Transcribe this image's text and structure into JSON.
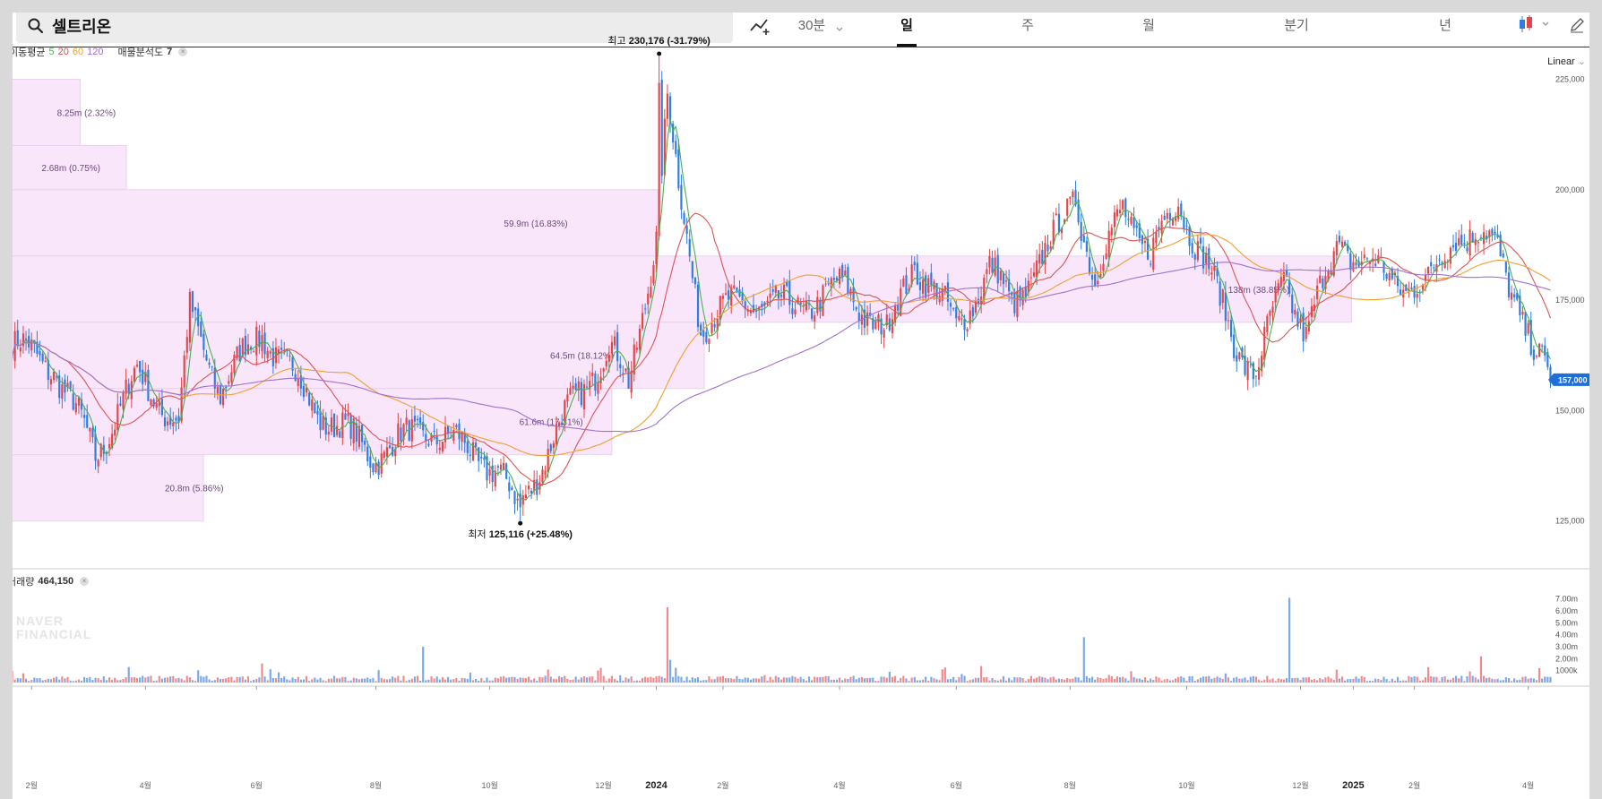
{
  "search": {
    "query": "셀트리온"
  },
  "toolbar": {
    "interval": "30분",
    "periods": [
      "일",
      "주",
      "월",
      "분기",
      "년"
    ],
    "active_period": "일",
    "scale_mode": "Linear"
  },
  "indicators": {
    "ma_label": "이동평균",
    "ma_periods": [
      "5",
      "20",
      "60",
      "120"
    ],
    "vp_label": "매물분석도",
    "vp_value": "7"
  },
  "volume_panel": {
    "label": "거래량",
    "value": "464,150"
  },
  "watermark": {
    "line1": "NAVER",
    "line2": "FINANCIAL"
  },
  "colors": {
    "up": "#e0464a",
    "down": "#2f7de1",
    "ma5": "#4caf50",
    "ma20": "#e05353",
    "ma60": "#f0a030",
    "ma120": "#a070d0",
    "vp_fill": "#f9e6fb",
    "price_tag": "#1e6fd9"
  },
  "chart_data": {
    "type": "candlestick",
    "title": "",
    "price_axis": {
      "ylim": [
        115000,
        232000
      ],
      "ticks": [
        125000,
        150000,
        175000,
        200000,
        225000
      ],
      "tick_labels": [
        "125,000",
        "150,000",
        "175,000",
        "200,000",
        "225,000"
      ]
    },
    "time_axis": {
      "labels": [
        "2월",
        "4월",
        "6월",
        "8월",
        "10월",
        "12월",
        "2024",
        "2월",
        "4월",
        "6월",
        "8월",
        "10월",
        "12월",
        "2025",
        "2월",
        "4월"
      ],
      "label_index": [
        7,
        48,
        88,
        131,
        172,
        213,
        232,
        256,
        298,
        340,
        381,
        423,
        464,
        483,
        505,
        546
      ]
    },
    "n_bars": 555,
    "close_anchors": [
      [
        0,
        165000
      ],
      [
        15,
        160000
      ],
      [
        30,
        140000
      ],
      [
        45,
        158000
      ],
      [
        60,
        147000
      ],
      [
        64,
        172000
      ],
      [
        75,
        155000
      ],
      [
        90,
        168000
      ],
      [
        110,
        150000
      ],
      [
        130,
        140000
      ],
      [
        150,
        146000
      ],
      [
        175,
        137000
      ],
      [
        182,
        127000
      ],
      [
        195,
        144000
      ],
      [
        215,
        165000
      ],
      [
        222,
        155000
      ],
      [
        232,
        190000
      ],
      [
        236,
        220000
      ],
      [
        240,
        200000
      ],
      [
        248,
        170000
      ],
      [
        265,
        175000
      ],
      [
        280,
        173000
      ],
      [
        300,
        178000
      ],
      [
        315,
        167000
      ],
      [
        325,
        184000
      ],
      [
        340,
        169000
      ],
      [
        352,
        182000
      ],
      [
        360,
        174000
      ],
      [
        375,
        188000
      ],
      [
        383,
        200000
      ],
      [
        390,
        178000
      ],
      [
        400,
        197000
      ],
      [
        410,
        185000
      ],
      [
        420,
        198000
      ],
      [
        430,
        183000
      ],
      [
        440,
        166000
      ],
      [
        448,
        158000
      ],
      [
        458,
        180000
      ],
      [
        466,
        168000
      ],
      [
        478,
        188000
      ],
      [
        495,
        180000
      ],
      [
        510,
        178000
      ],
      [
        520,
        191000
      ],
      [
        535,
        187000
      ],
      [
        542,
        175000
      ],
      [
        548,
        162000
      ],
      [
        552,
        159000
      ],
      [
        554,
        157000
      ]
    ],
    "high": {
      "value": 230176,
      "label": "최고",
      "value_label": "230,176",
      "pct_label": "(-31.79%)"
    },
    "low": {
      "value": 125116,
      "label": "최저",
      "value_label": "125,116",
      "pct_label": "(+25.48%)"
    },
    "current_price": {
      "value": 157000,
      "label": "157,000"
    },
    "volume_profile": [
      {
        "from": 210000,
        "to": 225000,
        "label": "8.25m (2.32%)"
      },
      {
        "from": 200000,
        "to": 210000,
        "label": "2.68m (0.75%)"
      },
      {
        "from": 185000,
        "to": 200000,
        "label": "59.9m (16.83%)"
      },
      {
        "from": 170000,
        "to": 185000,
        "label": "138m (38.85%)"
      },
      {
        "from": 155000,
        "to": 170000,
        "label": "64.5m (18.12%)"
      },
      {
        "from": 140000,
        "to": 155000,
        "label": "61.6m (17.31%)"
      },
      {
        "from": 125000,
        "to": 140000,
        "label": "20.8m (5.86%)"
      }
    ],
    "volume_axis": {
      "ylim": [
        0,
        7500000
      ],
      "ticks": [
        1000000,
        2000000,
        3000000,
        4000000,
        5000000,
        6000000,
        7000000
      ],
      "tick_labels": [
        "1000k",
        "2.00m",
        "3.00m",
        "4.00m",
        "5.00m",
        "6.00m",
        "7.00m"
      ]
    },
    "volume_spikes": [
      [
        42,
        1300000
      ],
      [
        90,
        1600000
      ],
      [
        148,
        3000000
      ],
      [
        236,
        6300000
      ],
      [
        237,
        1900000
      ],
      [
        386,
        3800000
      ],
      [
        460,
        7100000
      ],
      [
        529,
        2200000
      ],
      [
        550,
        1200000
      ]
    ],
    "last_volume": 464150
  }
}
